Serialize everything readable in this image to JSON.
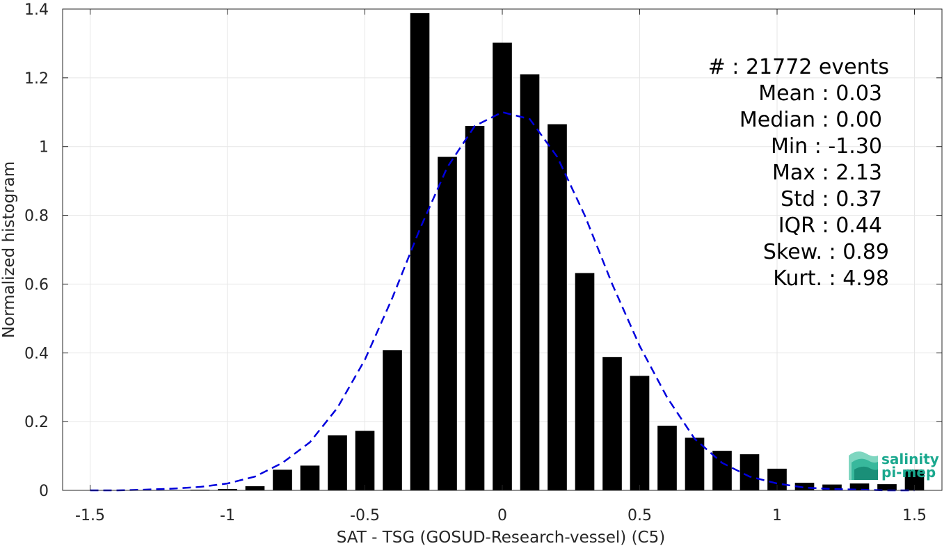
{
  "chart_data": {
    "type": "bar",
    "xlabel": "SAT - TSG (GOSUD-Research-vessel) (C5)",
    "ylabel": "Normalized histogram",
    "xlim": [
      -1.6,
      1.6
    ],
    "ylim": [
      0,
      1.4
    ],
    "grid": true,
    "x_ticks": [
      -1.5,
      -1,
      -0.5,
      0,
      0.5,
      1,
      1.5
    ],
    "x_tick_labels": [
      "-1.5",
      "-1",
      "-0.5",
      "0",
      "0.5",
      "1",
      "1.5"
    ],
    "y_ticks": [
      0,
      0.2,
      0.4,
      0.6,
      0.8,
      1,
      1.2,
      1.4
    ],
    "y_tick_labels": [
      "0",
      "0.2",
      "0.4",
      "0.6",
      "0.8",
      "1",
      "1.2",
      "1.4"
    ],
    "bar_width": 0.07,
    "bar_color": "#000000",
    "bars": [
      {
        "x": -1.1,
        "y": 0.002
      },
      {
        "x": -1.0,
        "y": 0.004
      },
      {
        "x": -0.9,
        "y": 0.012
      },
      {
        "x": -0.8,
        "y": 0.06
      },
      {
        "x": -0.7,
        "y": 0.072
      },
      {
        "x": -0.6,
        "y": 0.16
      },
      {
        "x": -0.5,
        "y": 0.173
      },
      {
        "x": -0.4,
        "y": 0.408
      },
      {
        "x": -0.3,
        "y": 1.388
      },
      {
        "x": -0.2,
        "y": 0.97
      },
      {
        "x": -0.1,
        "y": 1.06
      },
      {
        "x": 0.0,
        "y": 1.302
      },
      {
        "x": 0.1,
        "y": 1.21
      },
      {
        "x": 0.2,
        "y": 1.065
      },
      {
        "x": 0.3,
        "y": 0.632
      },
      {
        "x": 0.4,
        "y": 0.388
      },
      {
        "x": 0.5,
        "y": 0.333
      },
      {
        "x": 0.6,
        "y": 0.188
      },
      {
        "x": 0.7,
        "y": 0.153
      },
      {
        "x": 0.8,
        "y": 0.115
      },
      {
        "x": 0.9,
        "y": 0.105
      },
      {
        "x": 1.0,
        "y": 0.063
      },
      {
        "x": 1.1,
        "y": 0.022
      },
      {
        "x": 1.2,
        "y": 0.017
      },
      {
        "x": 1.3,
        "y": 0.02
      },
      {
        "x": 1.4,
        "y": 0.018
      },
      {
        "x": 1.5,
        "y": 0.06
      }
    ],
    "fit_curve": {
      "style": "dashed",
      "color": "#0000dd",
      "x": [
        -1.5,
        -1.4,
        -1.3,
        -1.2,
        -1.1,
        -1.0,
        -0.9,
        -0.8,
        -0.7,
        -0.6,
        -0.5,
        -0.4,
        -0.3,
        -0.2,
        -0.1,
        0.0,
        0.1,
        0.2,
        0.3,
        0.4,
        0.5,
        0.6,
        0.7,
        0.8,
        0.9,
        1.0,
        1.1,
        1.2,
        1.3,
        1.4,
        1.5
      ],
      "y": [
        0.0,
        0.0,
        0.002,
        0.005,
        0.01,
        0.02,
        0.04,
        0.08,
        0.14,
        0.24,
        0.38,
        0.56,
        0.76,
        0.94,
        1.06,
        1.1,
        1.08,
        0.97,
        0.8,
        0.6,
        0.42,
        0.27,
        0.15,
        0.08,
        0.04,
        0.02,
        0.008,
        0.004,
        0.002,
        0.0,
        0.0
      ]
    },
    "annotations": [
      "#  : 21772 events",
      "Mean : 0.03",
      "Median : 0.00",
      "Min : -1.30",
      "Max : 2.13",
      "Std : 0.37",
      "IQR : 0.44",
      "Skew. : 0.89",
      "Kurt. : 4.98"
    ]
  },
  "logo": {
    "line1": "salinity",
    "line2": "pi-mep",
    "color": "#1aa88e"
  }
}
